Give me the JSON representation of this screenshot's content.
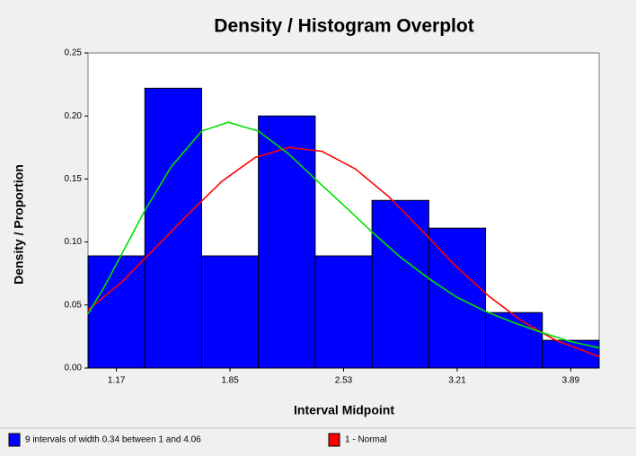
{
  "chart_data": {
    "type": "histogram",
    "title": "Density / Histogram Overplot",
    "xlabel": "Interval Midpoint",
    "ylabel": "Density / Proportion",
    "bins": [
      1,
      1.34,
      1.68,
      2.02,
      2.36,
      2.7,
      3.04,
      3.38,
      3.72,
      4.06
    ],
    "name": "9 intervals of width 0.34 between 1 and 4.06",
    "color": "#0000ff",
    "values": [
      0.089,
      0.222,
      0.089,
      0.2,
      0.089,
      0.133,
      0.111,
      0.044,
      0.022
    ],
    "lines": [
      {
        "name": "1 - Normal",
        "color": "#ff0000",
        "x": [
          1.0,
          1.2,
          1.4,
          1.6,
          1.8,
          2.0,
          2.2,
          2.4,
          2.6,
          2.8,
          3.0,
          3.2,
          3.4,
          3.6,
          3.8,
          4.06
        ],
        "values": [
          0.046,
          0.068,
          0.095,
          0.122,
          0.148,
          0.167,
          0.175,
          0.172,
          0.158,
          0.136,
          0.109,
          0.081,
          0.057,
          0.037,
          0.022,
          0.009
        ]
      },
      {
        "color": "#00e000",
        "x": [
          1.0,
          1.1,
          1.2,
          1.34,
          1.5,
          1.68,
          1.84,
          2.02,
          2.2,
          2.36,
          2.54,
          2.7,
          2.87,
          3.04,
          3.21,
          3.38,
          3.55,
          3.72,
          3.89,
          4.06
        ],
        "values": [
          0.043,
          0.065,
          0.09,
          0.125,
          0.16,
          0.188,
          0.195,
          0.188,
          0.17,
          0.15,
          0.128,
          0.108,
          0.088,
          0.071,
          0.056,
          0.045,
          0.036,
          0.028,
          0.021,
          0.016
        ]
      }
    ],
    "xlim": [
      1,
      4.06
    ],
    "xticks": [
      1.17,
      1.85,
      2.53,
      3.21,
      3.89
    ],
    "ylim": [
      0,
      0.25
    ],
    "yticks": [
      {
        "value": 0,
        "label": "0.00"
      },
      {
        "value": 0.05,
        "label": "0.05"
      },
      {
        "value": 0.1,
        "label": "0.10"
      },
      {
        "value": 0.15,
        "label": "0.15"
      },
      {
        "value": 0.2,
        "label": "0.20"
      },
      {
        "value": 0.25,
        "label": "0.25"
      }
    ]
  }
}
